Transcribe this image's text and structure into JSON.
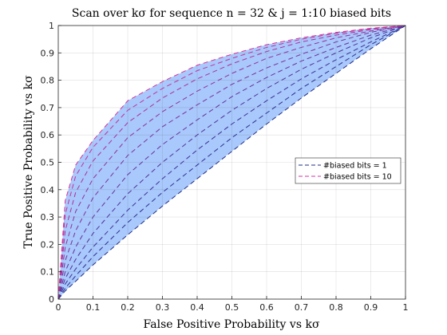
{
  "chart_data": {
    "type": "line",
    "title": "Scan over kσ for sequence n = 32 & j = 1:10 biased bits",
    "xlabel": "False Positive Probability vs kσ",
    "ylabel": "True Positive Probability vs kσ",
    "xlim": [
      0,
      1
    ],
    "ylim": [
      0,
      1
    ],
    "xticks": [
      "0",
      "0.1",
      "0.2",
      "0.3",
      "0.4",
      "0.5",
      "0.6",
      "0.7",
      "0.8",
      "0.9",
      "1"
    ],
    "yticks": [
      "0",
      "0.1",
      "0.2",
      "0.3",
      "0.4",
      "0.5",
      "0.6",
      "0.7",
      "0.8",
      "0.9",
      "1"
    ],
    "grid": true,
    "fill_color": "#a9c8fb",
    "legend_position": "right",
    "legend": [
      {
        "label": "#biased bits = 1",
        "color": "#1f2c86",
        "style": "dashed"
      },
      {
        "label": "#biased bits = 10",
        "color": "#d6339c",
        "style": "dashed"
      }
    ],
    "series": [
      {
        "color": "#1f2c86",
        "x": [
          0,
          0.02,
          0.05,
          0.1,
          0.2,
          0.3,
          0.4,
          0.5,
          0.6,
          0.7,
          0.8,
          0.9,
          1
        ],
        "y": [
          0,
          0.03,
          0.065,
          0.125,
          0.235,
          0.34,
          0.44,
          0.54,
          0.64,
          0.735,
          0.825,
          0.915,
          1
        ]
      },
      {
        "color": "#2a2f90",
        "x": [
          0,
          0.02,
          0.05,
          0.1,
          0.2,
          0.3,
          0.4,
          0.5,
          0.6,
          0.7,
          0.8,
          0.9,
          1
        ],
        "y": [
          0,
          0.04,
          0.085,
          0.155,
          0.28,
          0.39,
          0.49,
          0.59,
          0.68,
          0.77,
          0.85,
          0.93,
          1
        ]
      },
      {
        "color": "#3b3196",
        "x": [
          0,
          0.02,
          0.05,
          0.1,
          0.2,
          0.3,
          0.4,
          0.5,
          0.6,
          0.7,
          0.8,
          0.9,
          1
        ],
        "y": [
          0,
          0.055,
          0.11,
          0.19,
          0.325,
          0.44,
          0.545,
          0.64,
          0.725,
          0.805,
          0.875,
          0.94,
          1
        ]
      },
      {
        "color": "#4e3399",
        "x": [
          0,
          0.02,
          0.05,
          0.1,
          0.2,
          0.3,
          0.4,
          0.5,
          0.6,
          0.7,
          0.8,
          0.9,
          1
        ],
        "y": [
          0,
          0.075,
          0.145,
          0.24,
          0.385,
          0.5,
          0.6,
          0.69,
          0.77,
          0.84,
          0.9,
          0.955,
          1
        ]
      },
      {
        "color": "#63339b",
        "x": [
          0,
          0.02,
          0.05,
          0.1,
          0.2,
          0.3,
          0.4,
          0.5,
          0.6,
          0.7,
          0.8,
          0.9,
          1
        ],
        "y": [
          0,
          0.1,
          0.19,
          0.3,
          0.455,
          0.565,
          0.655,
          0.74,
          0.81,
          0.87,
          0.92,
          0.965,
          1
        ]
      },
      {
        "color": "#78339c",
        "x": [
          0,
          0.02,
          0.05,
          0.1,
          0.2,
          0.3,
          0.4,
          0.5,
          0.6,
          0.7,
          0.8,
          0.9,
          1
        ],
        "y": [
          0,
          0.14,
          0.25,
          0.37,
          0.525,
          0.63,
          0.71,
          0.785,
          0.845,
          0.895,
          0.94,
          0.975,
          1
        ]
      },
      {
        "color": "#8f339d",
        "x": [
          0,
          0.02,
          0.05,
          0.1,
          0.2,
          0.3,
          0.4,
          0.5,
          0.6,
          0.7,
          0.8,
          0.9,
          1
        ],
        "y": [
          0,
          0.19,
          0.32,
          0.44,
          0.59,
          0.685,
          0.76,
          0.825,
          0.88,
          0.92,
          0.955,
          0.98,
          1
        ]
      },
      {
        "color": "#a8339d",
        "x": [
          0,
          0.02,
          0.05,
          0.1,
          0.2,
          0.3,
          0.4,
          0.5,
          0.6,
          0.7,
          0.8,
          0.9,
          1
        ],
        "y": [
          0,
          0.25,
          0.39,
          0.505,
          0.645,
          0.735,
          0.805,
          0.86,
          0.905,
          0.94,
          0.965,
          0.985,
          1
        ]
      },
      {
        "color": "#c0339c",
        "x": [
          0,
          0.02,
          0.05,
          0.1,
          0.2,
          0.3,
          0.4,
          0.5,
          0.6,
          0.7,
          0.8,
          0.9,
          1
        ],
        "y": [
          0,
          0.31,
          0.45,
          0.555,
          0.69,
          0.77,
          0.835,
          0.88,
          0.92,
          0.95,
          0.972,
          0.988,
          1
        ]
      },
      {
        "color": "#d6339c",
        "x": [
          0,
          0.02,
          0.05,
          0.1,
          0.2,
          0.3,
          0.4,
          0.5,
          0.6,
          0.7,
          0.8,
          0.9,
          1
        ],
        "y": [
          0,
          0.36,
          0.49,
          0.58,
          0.725,
          0.795,
          0.855,
          0.895,
          0.93,
          0.955,
          0.975,
          0.99,
          1
        ]
      }
    ]
  }
}
